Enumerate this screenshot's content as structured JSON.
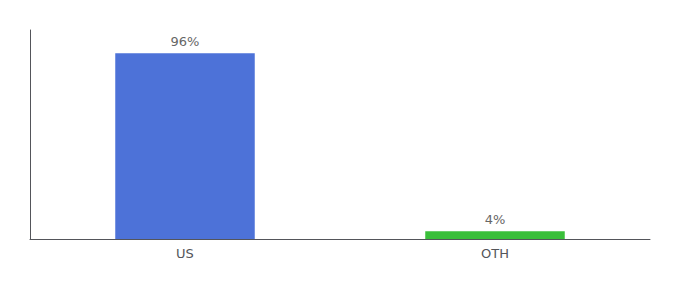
{
  "chart_data": {
    "type": "bar",
    "categories": [
      "US",
      "OTH"
    ],
    "values": [
      96,
      4
    ],
    "value_labels": [
      "96%",
      "4%"
    ],
    "colors": [
      "#4d72d8",
      "#3abf3a"
    ],
    "ylim": [
      0,
      108
    ],
    "data_labels": true,
    "tick_labels": "x",
    "grid": false
  }
}
